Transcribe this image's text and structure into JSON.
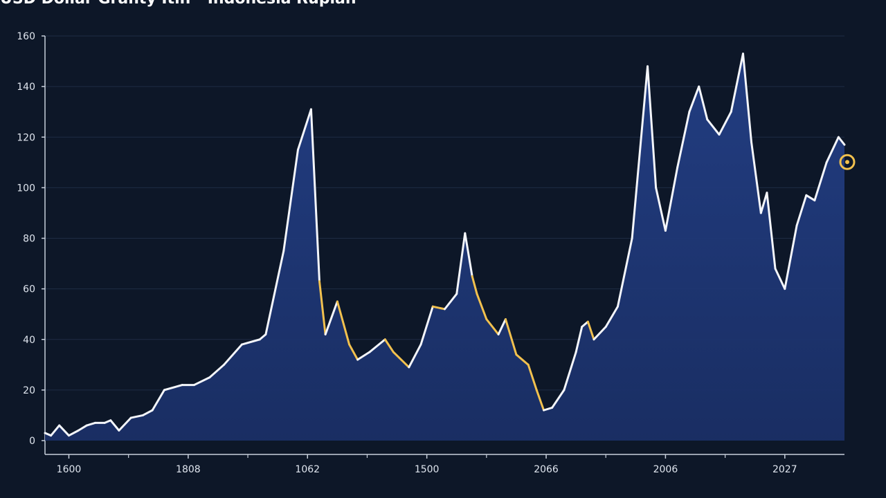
{
  "chart_data": {
    "type": "area",
    "title": "USD Dollar Granty Itih - Indonesia Rupiah",
    "xlabel": "",
    "ylabel": "",
    "ylim": [
      0,
      160
    ],
    "grid": true,
    "legend": "none",
    "y_ticks": [
      "0",
      "20",
      "40",
      "60",
      "80",
      "100",
      "120",
      "140",
      "160"
    ],
    "y_tick_values": [
      0,
      20,
      40,
      60,
      80,
      100,
      120,
      140,
      160
    ],
    "x_ticks": [
      "1600",
      "1808",
      "1062",
      "1500",
      "2066",
      "2006",
      "2027"
    ],
    "x_tick_values": [
      20,
      120,
      220,
      320,
      420,
      520,
      620
    ],
    "x_range": [
      0,
      670
    ],
    "series": [
      {
        "values": [
          [
            0,
            3
          ],
          [
            5,
            2
          ],
          [
            12,
            6
          ],
          [
            20,
            2
          ],
          [
            28,
            4
          ],
          [
            35,
            6
          ],
          [
            42,
            7
          ],
          [
            50,
            7
          ],
          [
            55,
            8
          ],
          [
            62,
            4
          ],
          [
            72,
            9
          ],
          [
            82,
            10
          ],
          [
            90,
            12
          ],
          [
            100,
            20
          ],
          [
            115,
            22
          ],
          [
            125,
            22
          ],
          [
            138,
            25
          ],
          [
            150,
            30
          ],
          [
            165,
            38
          ],
          [
            180,
            40
          ],
          [
            185,
            42
          ],
          [
            200,
            75
          ],
          [
            212,
            115
          ],
          [
            223,
            131
          ],
          [
            230,
            63
          ],
          [
            235,
            42
          ],
          [
            245,
            55
          ],
          [
            255,
            38
          ],
          [
            262,
            32
          ],
          [
            272,
            35
          ],
          [
            285,
            40
          ],
          [
            292,
            35
          ],
          [
            305,
            29
          ],
          [
            315,
            38
          ],
          [
            325,
            53
          ],
          [
            335,
            52
          ],
          [
            345,
            58
          ],
          [
            352,
            82
          ],
          [
            358,
            65
          ],
          [
            362,
            58
          ],
          [
            370,
            48
          ],
          [
            380,
            42
          ],
          [
            386,
            48
          ],
          [
            395,
            34
          ],
          [
            405,
            30
          ],
          [
            412,
            20
          ],
          [
            418,
            12
          ],
          [
            425,
            13
          ],
          [
            435,
            20
          ],
          [
            445,
            35
          ],
          [
            450,
            45
          ],
          [
            455,
            47
          ],
          [
            460,
            40
          ],
          [
            470,
            45
          ],
          [
            480,
            53
          ],
          [
            492,
            80
          ],
          [
            505,
            148
          ],
          [
            512,
            100
          ],
          [
            520,
            83
          ],
          [
            530,
            108
          ],
          [
            540,
            130
          ],
          [
            548,
            140
          ],
          [
            555,
            127
          ],
          [
            565,
            121
          ],
          [
            575,
            130
          ],
          [
            585,
            153
          ],
          [
            592,
            118
          ],
          [
            600,
            90
          ],
          [
            605,
            98
          ],
          [
            612,
            68
          ],
          [
            620,
            60
          ],
          [
            630,
            85
          ],
          [
            638,
            97
          ],
          [
            645,
            95
          ],
          [
            655,
            110
          ],
          [
            665,
            120
          ],
          [
            670,
            117
          ]
        ]
      }
    ]
  }
}
